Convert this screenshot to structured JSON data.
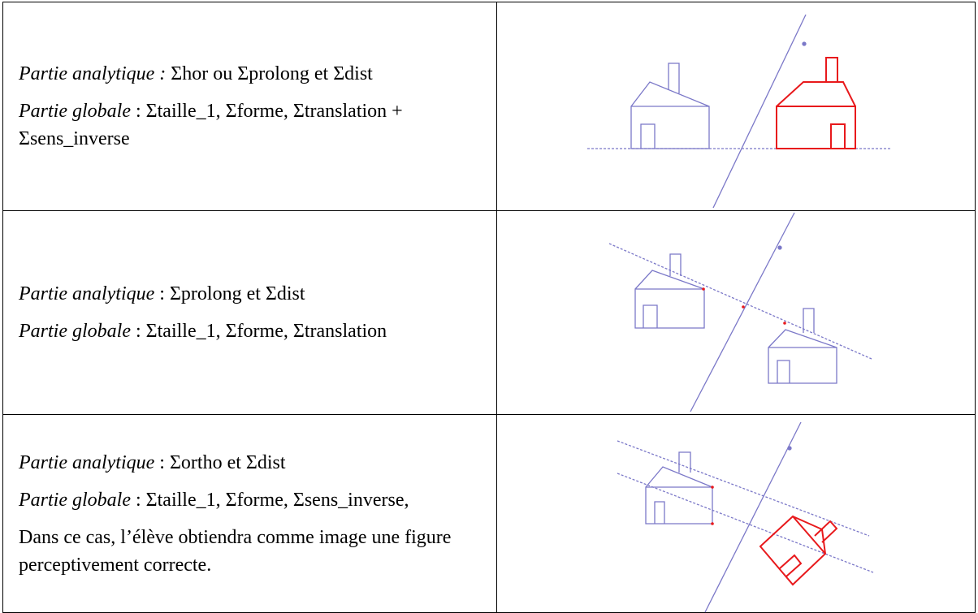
{
  "table": {
    "rows": [
      {
        "analytique_label": "Partie analytique :",
        "analytique": "Σhor ou Σprolong et Σdist",
        "globale_label": "Partie globale",
        "globale": ": Σtaille_1, Σforme, Σtranslation + Σsens_inverse"
      },
      {
        "analytique_label": "Partie analytique",
        "analytique": ": Σprolong et Σdist",
        "globale_label": "Partie globale",
        "globale": ": Σtaille_1, Σforme, Σtranslation"
      },
      {
        "analytique_label": "Partie analytique",
        "analytique": ": Σortho et Σdist",
        "globale_label": "Partie globale",
        "globale": ": Σtaille_1, Σforme, Σsens_inverse,",
        "note": "Dans ce cas, l’élève obtiendra comme image une figure perceptivement correcte."
      }
    ]
  }
}
